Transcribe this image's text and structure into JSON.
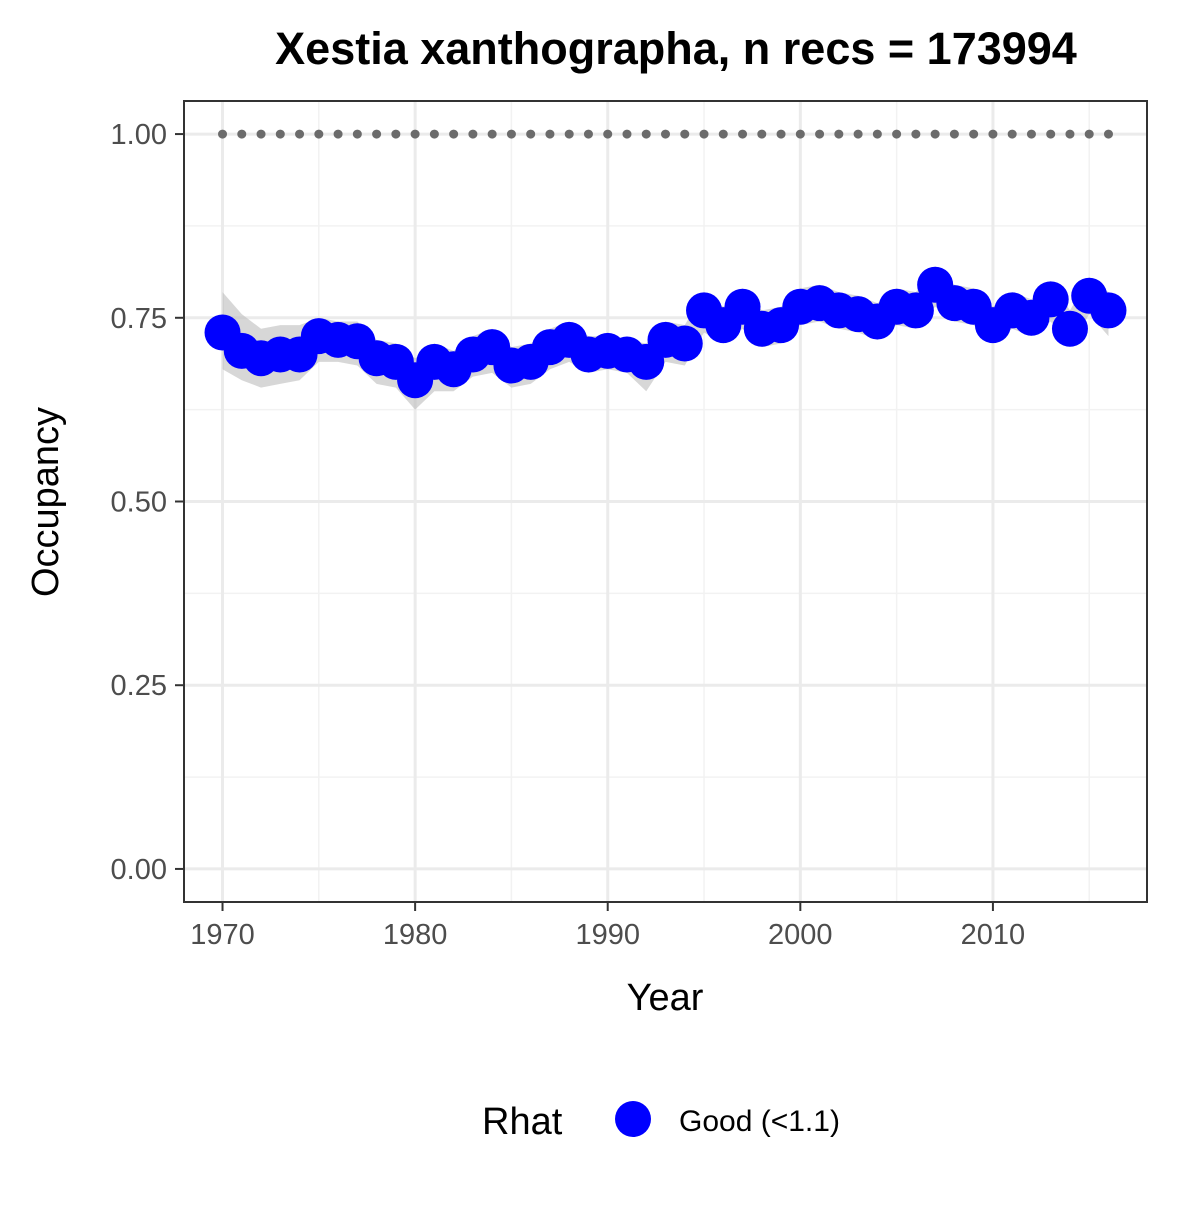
{
  "chart_data": {
    "type": "line",
    "title": "Xestia xanthographa, n recs = 173994",
    "xlabel": "Year",
    "ylabel": "Occupancy",
    "xlim": [
      1968,
      2018
    ],
    "ylim": [
      -0.045,
      1.045
    ],
    "x_ticks": [
      1970,
      1980,
      1990,
      2000,
      2010
    ],
    "y_ticks": [
      0.0,
      0.25,
      0.5,
      0.75,
      1.0
    ],
    "y_tick_labels": [
      "0.00",
      "0.25",
      "0.50",
      "0.75",
      "1.00"
    ],
    "grid": true,
    "legend_position": "bottom",
    "legend": {
      "title": "Rhat",
      "entries": [
        {
          "label": "Good (<1.1)",
          "color": "#0000ff"
        }
      ]
    },
    "colors": {
      "point": "#0000ff",
      "band": "#bdbdbd",
      "reference": "#6b6b6b"
    },
    "years": [
      1970,
      1971,
      1972,
      1973,
      1974,
      1975,
      1976,
      1977,
      1978,
      1979,
      1980,
      1981,
      1982,
      1983,
      1984,
      1985,
      1986,
      1987,
      1988,
      1989,
      1990,
      1991,
      1992,
      1993,
      1994,
      1995,
      1996,
      1997,
      1998,
      1999,
      2000,
      2001,
      2002,
      2003,
      2004,
      2005,
      2006,
      2007,
      2008,
      2009,
      2010,
      2011,
      2012,
      2013,
      2014,
      2015,
      2016
    ],
    "series": [
      {
        "name": "Occupancy",
        "values": [
          0.73,
          0.705,
          0.695,
          0.7,
          0.7,
          0.725,
          0.72,
          0.718,
          0.695,
          0.69,
          0.665,
          0.69,
          0.68,
          0.7,
          0.71,
          0.685,
          0.69,
          0.71,
          0.72,
          0.7,
          0.705,
          0.7,
          0.69,
          0.72,
          0.715,
          0.76,
          0.74,
          0.765,
          0.735,
          0.74,
          0.765,
          0.77,
          0.76,
          0.755,
          0.745,
          0.765,
          0.76,
          0.795,
          0.77,
          0.765,
          0.74,
          0.76,
          0.75,
          0.775,
          0.735,
          0.78,
          0.76
        ],
        "lower": [
          0.68,
          0.665,
          0.655,
          0.66,
          0.665,
          0.69,
          0.69,
          0.685,
          0.66,
          0.655,
          0.625,
          0.65,
          0.65,
          0.67,
          0.675,
          0.655,
          0.66,
          0.68,
          0.69,
          0.675,
          0.68,
          0.675,
          0.65,
          0.69,
          0.685,
          0.73,
          0.715,
          0.735,
          0.71,
          0.715,
          0.74,
          0.745,
          0.735,
          0.73,
          0.72,
          0.74,
          0.735,
          0.765,
          0.745,
          0.74,
          0.715,
          0.735,
          0.725,
          0.745,
          0.71,
          0.755,
          0.725
        ],
        "upper": [
          0.785,
          0.755,
          0.735,
          0.74,
          0.74,
          0.75,
          0.745,
          0.745,
          0.72,
          0.715,
          0.695,
          0.715,
          0.705,
          0.725,
          0.735,
          0.71,
          0.715,
          0.735,
          0.745,
          0.725,
          0.725,
          0.72,
          0.715,
          0.745,
          0.74,
          0.785,
          0.765,
          0.79,
          0.76,
          0.765,
          0.79,
          0.795,
          0.785,
          0.78,
          0.77,
          0.79,
          0.785,
          0.82,
          0.795,
          0.79,
          0.765,
          0.785,
          0.775,
          0.8,
          0.76,
          0.805,
          0.785
        ]
      },
      {
        "name": "Reference",
        "values": [
          1,
          1,
          1,
          1,
          1,
          1,
          1,
          1,
          1,
          1,
          1,
          1,
          1,
          1,
          1,
          1,
          1,
          1,
          1,
          1,
          1,
          1,
          1,
          1,
          1,
          1,
          1,
          1,
          1,
          1,
          1,
          1,
          1,
          1,
          1,
          1,
          1,
          1,
          1,
          1,
          1,
          1,
          1,
          1,
          1,
          1,
          1
        ]
      }
    ]
  }
}
